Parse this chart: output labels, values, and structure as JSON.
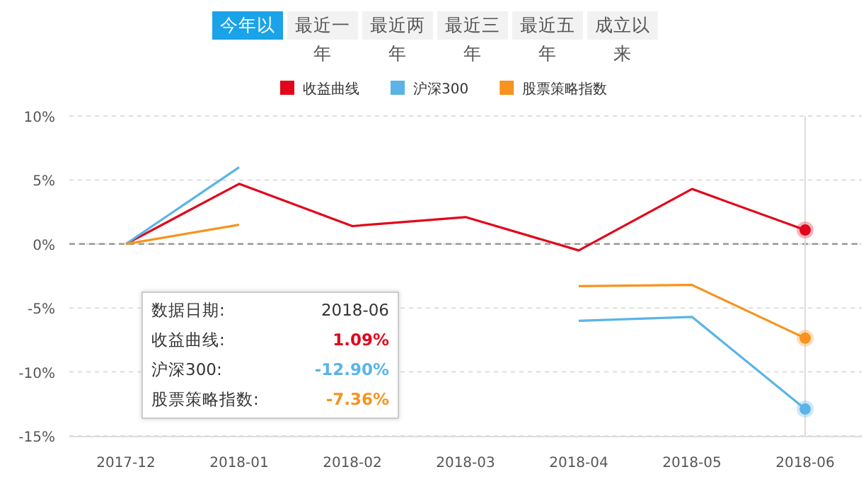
{
  "chart_data": {
    "type": "line",
    "categories": [
      "2017-12",
      "2018-01",
      "2018-02",
      "2018-03",
      "2018-04",
      "2018-05",
      "2018-06"
    ],
    "series": [
      {
        "name": "收益曲线",
        "color": "#e1061b",
        "values": [
          0,
          4.7,
          1.4,
          2.1,
          -0.5,
          4.3,
          1.09
        ]
      },
      {
        "name": "沪深300",
        "color": "#5ab4e8",
        "values": [
          0,
          6.0,
          null,
          null,
          -6.0,
          -5.7,
          -12.9
        ]
      },
      {
        "name": "股票策略指数",
        "color": "#f7931e",
        "values": [
          0,
          1.5,
          null,
          null,
          -3.3,
          -3.2,
          -7.36
        ]
      }
    ],
    "ylim": [
      -15,
      10
    ],
    "yticks": [
      {
        "value": -15,
        "label": "-15%"
      },
      {
        "value": -10,
        "label": "-10%"
      },
      {
        "value": -5,
        "label": "-5%"
      },
      {
        "value": 0,
        "label": "0%"
      },
      {
        "value": 5,
        "label": "5%"
      },
      {
        "value": 10,
        "label": "10%"
      }
    ],
    "grid": "y",
    "legend": "top",
    "line_style": "solid",
    "ref_lines": [
      {
        "axis": "y",
        "value": 0,
        "color": "#999999",
        "line_style": "dashed"
      },
      {
        "axis": "x",
        "value": "2018-06",
        "color": "#dddddd",
        "line_style": "solid"
      }
    ],
    "annotations": [
      "今年以",
      "最近一年",
      "最近两年",
      "最近三年",
      "最近五年",
      "成立以来",
      "数据日期:",
      "2018-06",
      "收益曲线:",
      "1.09%",
      "沪深300:",
      "-12.90%",
      "股票策略指数:",
      "-7.36%"
    ]
  }
}
